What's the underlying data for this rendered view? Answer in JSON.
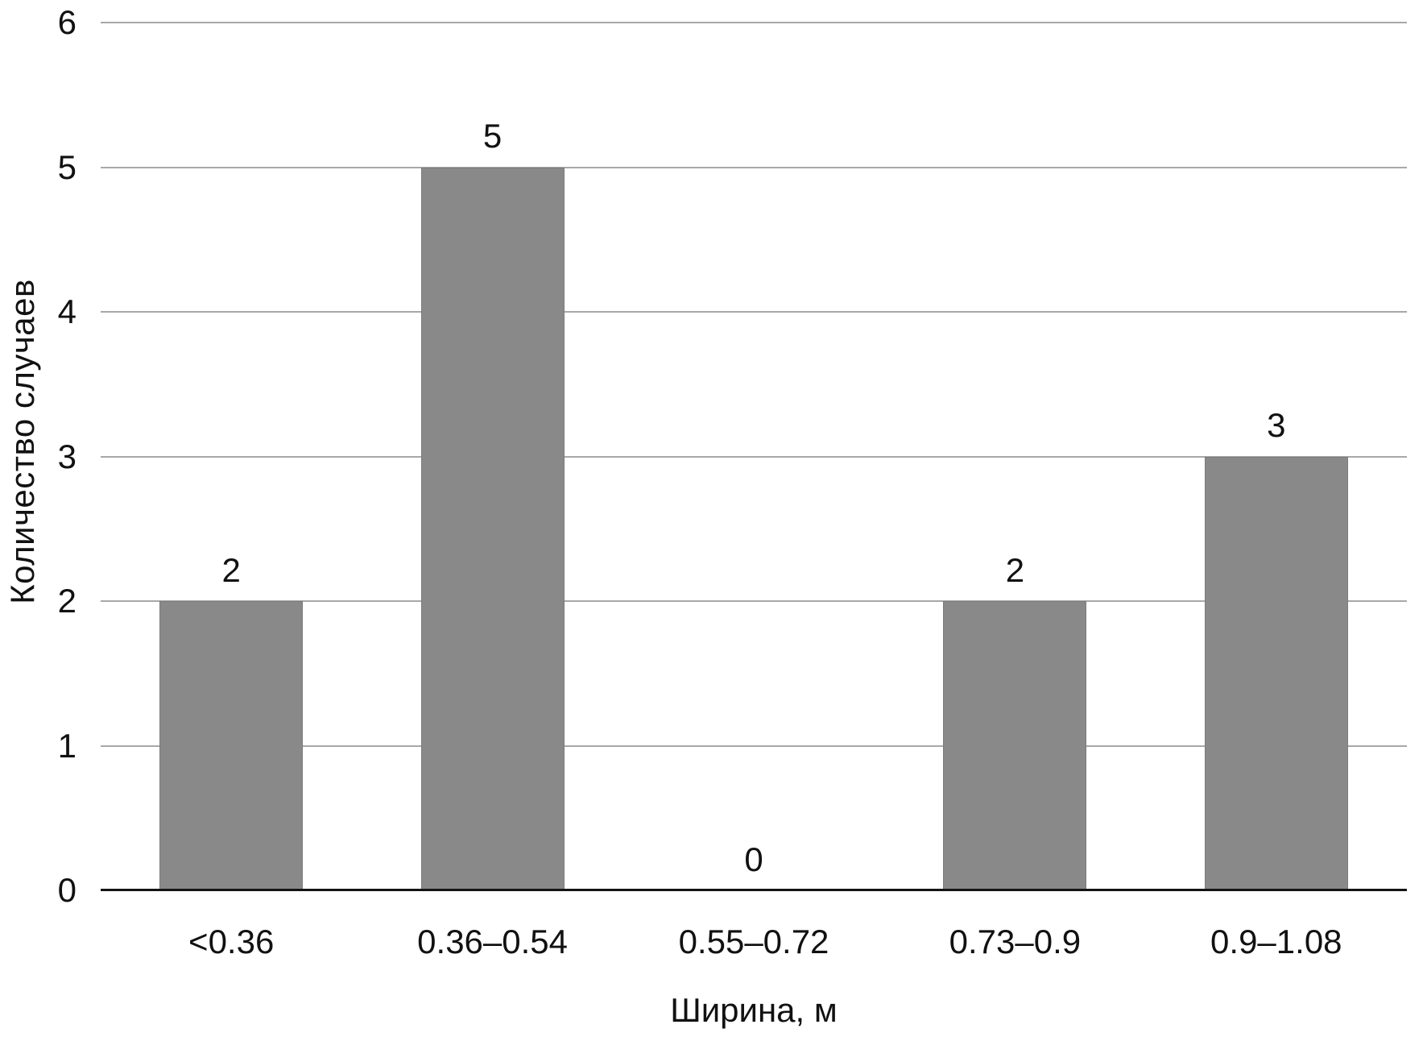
{
  "chart_data": {
    "type": "bar",
    "categories": [
      "<0.36",
      "0.36–0.54",
      "0.55–0.72",
      "0.73–0.9",
      "0.9–1.08"
    ],
    "values": [
      2,
      5,
      0,
      2,
      3
    ],
    "title": "",
    "xlabel": "Ширина, м",
    "ylabel": "Количество случаев",
    "ylim": [
      0,
      6
    ],
    "yticks": [
      0,
      1,
      2,
      3,
      4,
      5,
      6
    ],
    "grid": "horizontal-on",
    "legend": "none",
    "data_labels_shown": true,
    "colors": {
      "bar": "#898989",
      "bar_border": "#7c7c7c",
      "gridline": "#a8a8a8",
      "axis_line": "#141414",
      "text": "#111111",
      "background": "#ffffff"
    }
  }
}
